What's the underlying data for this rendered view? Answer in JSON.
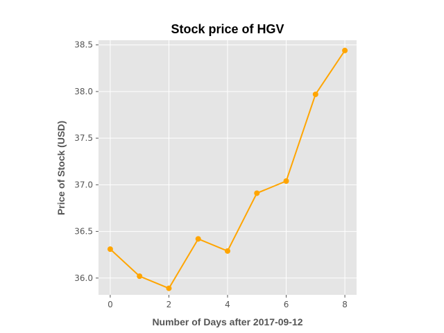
{
  "chart_data": {
    "type": "line",
    "title": "Stock price of HGV",
    "xlabel": "Number of Days after 2017-09-12",
    "ylabel": "Price of Stock (USD)",
    "xlim": [
      -0.4,
      8.4
    ],
    "ylim": [
      35.82,
      38.55
    ],
    "xticks": [
      0,
      2,
      4,
      6,
      8
    ],
    "xtick_labels": [
      "0",
      "2",
      "4",
      "6",
      "8"
    ],
    "yticks": [
      36.0,
      36.5,
      37.0,
      37.5,
      38.0,
      38.5
    ],
    "ytick_labels": [
      "36.0",
      "36.5",
      "37.0",
      "37.5",
      "38.0",
      "38.5"
    ],
    "grid": true,
    "series": [
      {
        "color": "#FFA500",
        "x": [
          0,
          1,
          2,
          3,
          4,
          5,
          6,
          7,
          8
        ],
        "y": [
          36.31,
          36.02,
          35.89,
          36.42,
          36.29,
          36.91,
          37.04,
          37.97,
          38.44
        ]
      }
    ],
    "background_color": "#E5E5E5",
    "grid_color": "#FFFFFF"
  }
}
